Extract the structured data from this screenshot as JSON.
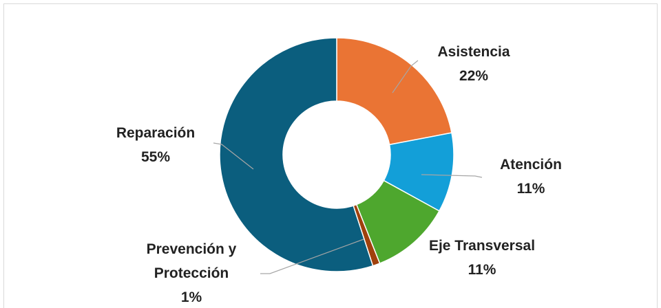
{
  "chart_data": {
    "type": "donut",
    "categories": [
      "Asistencia",
      "Atención",
      "Eje Transversal",
      "Prevención y Protección",
      "Reparación"
    ],
    "values": [
      22,
      11,
      11,
      1,
      55
    ],
    "value_labels": [
      "22%",
      "11%",
      "11%",
      "1%",
      "55%"
    ],
    "colors": [
      "#ea7434",
      "#139fd8",
      "#4ea72e",
      "#a0410d",
      "#0b5e7e"
    ]
  }
}
